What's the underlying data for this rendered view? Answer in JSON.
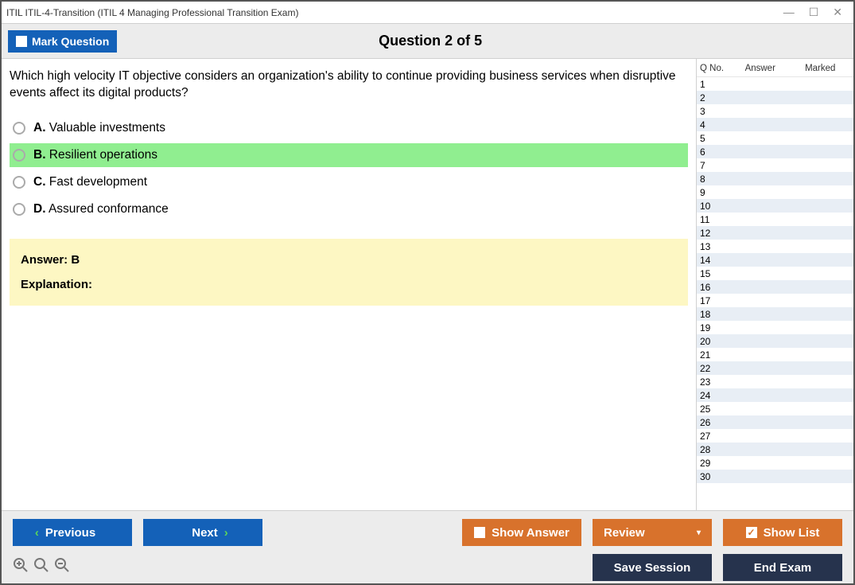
{
  "window": {
    "title": "ITIL ITIL-4-Transition (ITIL 4 Managing Professional Transition Exam)"
  },
  "toolbar": {
    "mark_label": "Mark Question",
    "question_header": "Question 2 of 5"
  },
  "question": {
    "text": "Which high velocity IT objective considers an organization's ability to continue providing business services when disruptive events affect its digital products?",
    "options": [
      {
        "letter": "A.",
        "text": "Valuable investments",
        "selected": false
      },
      {
        "letter": "B.",
        "text": "Resilient operations",
        "selected": true
      },
      {
        "letter": "C.",
        "text": "Fast development",
        "selected": false
      },
      {
        "letter": "D.",
        "text": "Assured conformance",
        "selected": false
      }
    ],
    "answer_label": "Answer: B",
    "explanation_label": "Explanation:"
  },
  "side": {
    "headers": {
      "qno": "Q No.",
      "answer": "Answer",
      "marked": "Marked"
    },
    "total_rows": 30
  },
  "buttons": {
    "previous": "Previous",
    "next": "Next",
    "show_answer": "Show Answer",
    "review": "Review",
    "show_list": "Show List",
    "save_session": "Save Session",
    "end_exam": "End Exam"
  },
  "colors": {
    "blue": "#1461b8",
    "orange": "#d8722c",
    "dark": "#26334d",
    "highlight": "#90ee90",
    "answer_bg": "#fdf7c3"
  }
}
